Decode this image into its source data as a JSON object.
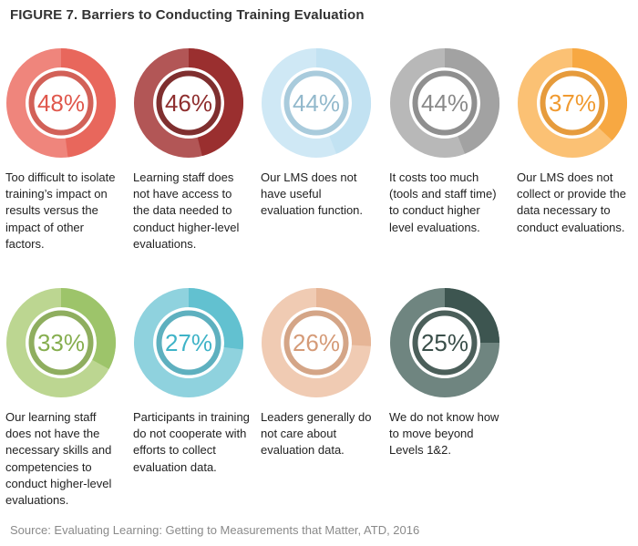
{
  "title": "FIGURE 7. Barriers to Conducting Training Evaluation",
  "source": "Source: Evaluating Learning: Getting to Measurements that Matter, ATD, 2016",
  "chart_data": {
    "type": "donut",
    "title": "FIGURE 7. Barriers to Conducting Training Evaluation",
    "unit": "%",
    "items": [
      {
        "value": 48,
        "label": "48%",
        "description": "Too difficult to isolate training’s impact on results versus the impact of other factors.",
        "colors": {
          "ring": "#ef857c",
          "filled": "#e8675c",
          "inner": "#d26158",
          "text": "#e0584d"
        }
      },
      {
        "value": 46,
        "label": "46%",
        "description": "Learning staff does not have access to the data needed to conduct higher-level evaluations.",
        "colors": {
          "ring": "#b25656",
          "filled": "#9a2f2f",
          "inner": "#7f2f2f",
          "text": "#8f2f2f"
        }
      },
      {
        "value": 44,
        "label": "44%",
        "description": "Our LMS does not have useful evaluation function.",
        "colors": {
          "ring": "#cfe8f5",
          "filled": "#c2e2f2",
          "inner": "#a9cbdc",
          "text": "#93b9cc"
        }
      },
      {
        "value": 44,
        "label": "44%",
        "description": "It costs too much (tools and staff time) to conduct higher level evaluations.",
        "colors": {
          "ring": "#b8b8b8",
          "filled": "#a2a2a2",
          "inner": "#8f8f8f",
          "text": "#8a8a8a"
        }
      },
      {
        "value": 37,
        "label": "37%",
        "description": "Our LMS does not collect or provide the data necessary to conduct evaluations.",
        "colors": {
          "ring": "#fbc174",
          "filled": "#f7a842",
          "inner": "#e69b3c",
          "text": "#f09a30"
        }
      },
      {
        "value": 33,
        "label": "33%",
        "description": "Our learning staff does not have the necessary skills and competencies to conduct higher-level evaluations.",
        "colors": {
          "ring": "#bcd691",
          "filled": "#9dc46a",
          "inner": "#8fae5f",
          "text": "#86ae4f"
        }
      },
      {
        "value": 27,
        "label": "27%",
        "description": "Participants in training do not cooperate with efforts to collect evaluation data.",
        "colors": {
          "ring": "#8fd2de",
          "filled": "#62c1d0",
          "inner": "#5eb0bf",
          "text": "#3fb3c7"
        }
      },
      {
        "value": 26,
        "label": "26%",
        "description": "Leaders generally do not care about evaluation data.",
        "colors": {
          "ring": "#f0cbb3",
          "filled": "#e6b596",
          "inner": "#d4a587",
          "text": "#d59b78"
        }
      },
      {
        "value": 25,
        "label": "25%",
        "description": "We do not know how to move beyond Levels 1&2.",
        "colors": {
          "ring": "#6f8580",
          "filled": "#3d5550",
          "inner": "#4b5f5a",
          "text": "#3a4f4a"
        }
      }
    ]
  }
}
